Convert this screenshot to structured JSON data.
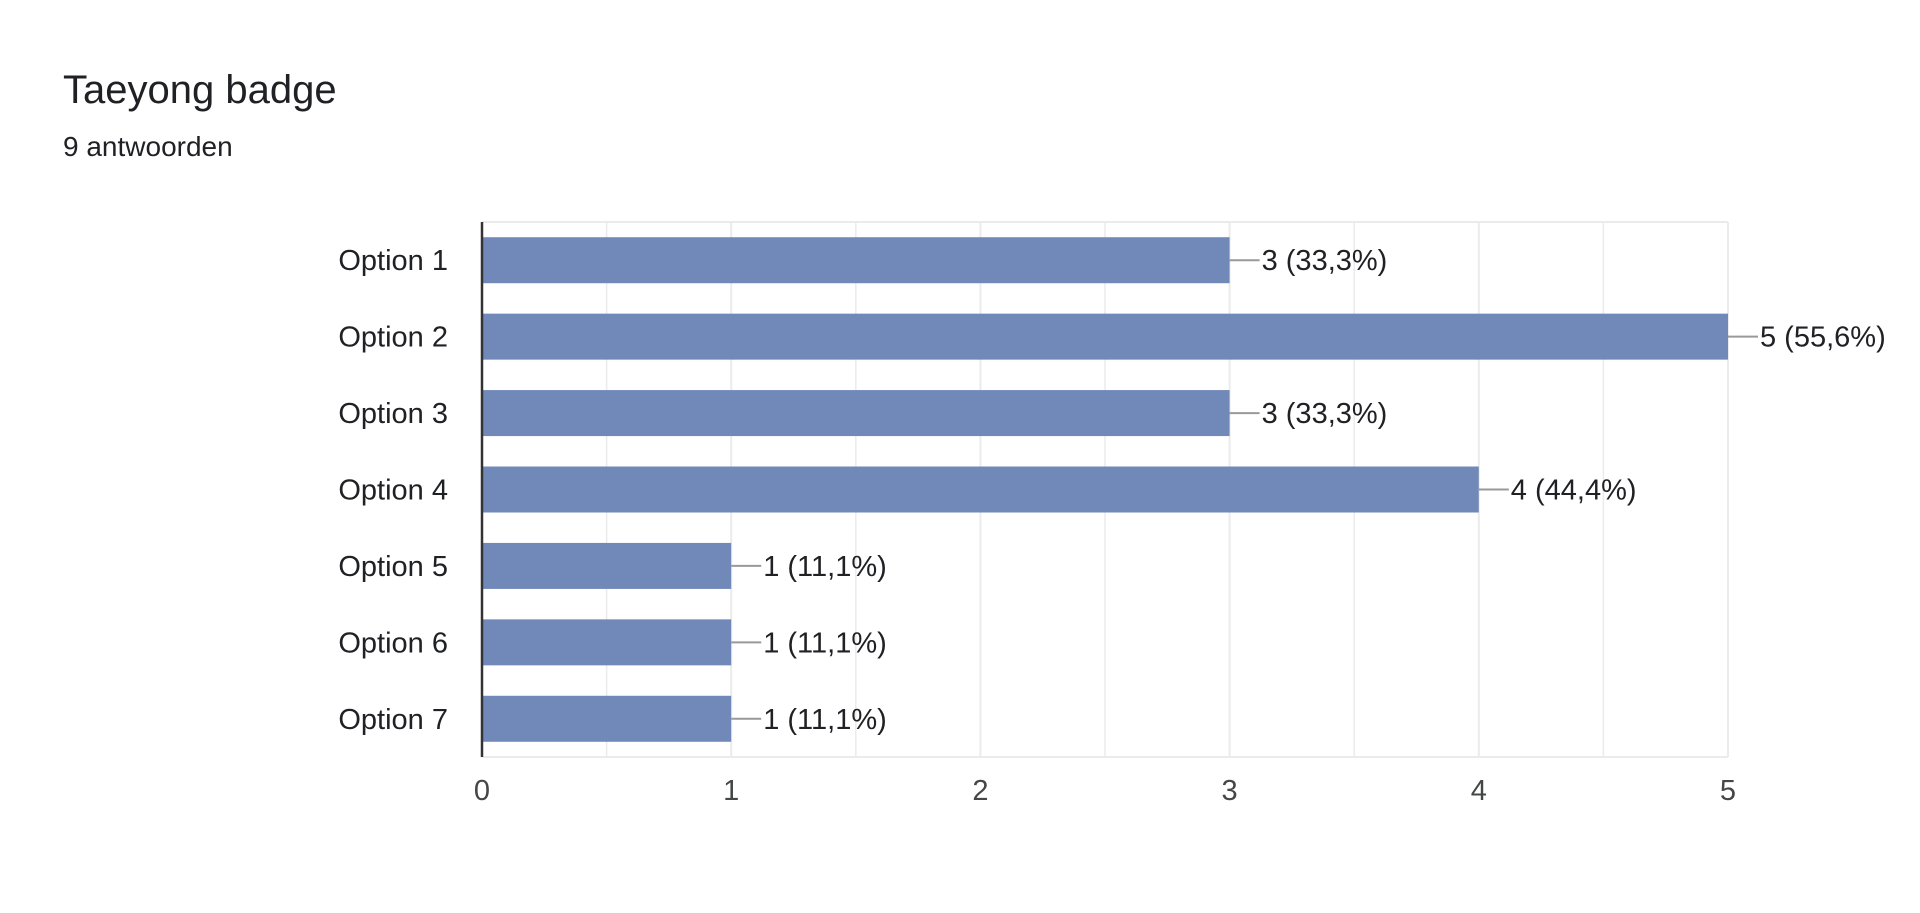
{
  "header": {
    "title": "Taeyong badge",
    "responses": "9 antwoorden"
  },
  "colors": {
    "bar": "#7189b8",
    "grid": "#ebebeb",
    "axis": "#333333",
    "leader": "#999999"
  },
  "chart_data": {
    "type": "bar",
    "orientation": "horizontal",
    "categories": [
      "Option 1",
      "Option 2",
      "Option 3",
      "Option 4",
      "Option 5",
      "Option 6",
      "Option 7"
    ],
    "values": [
      3,
      5,
      3,
      4,
      1,
      1,
      1
    ],
    "data_labels": [
      "3 (33,3%)",
      "5 (55,6%)",
      "3 (33,3%)",
      "4 (44,4%)",
      "1 (11,1%)",
      "1 (11,1%)",
      "1 (11,1%)"
    ],
    "xlim": [
      0,
      5
    ],
    "xticks": [
      0,
      1,
      2,
      3,
      4,
      5
    ],
    "grid": true,
    "legend": "none"
  }
}
